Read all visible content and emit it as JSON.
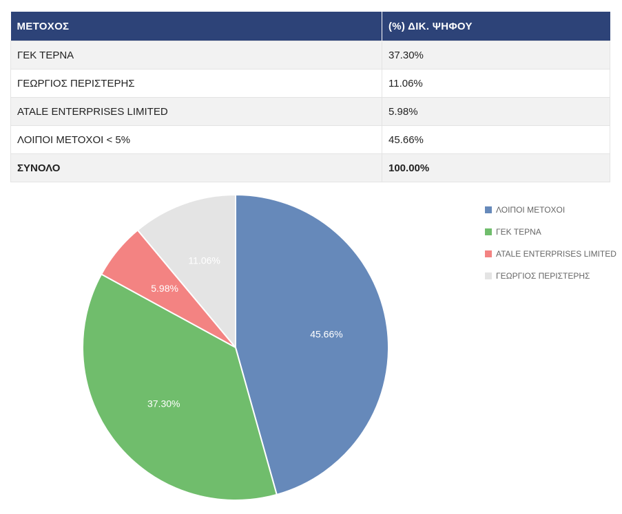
{
  "table": {
    "headers": [
      "ΜΕΤΟΧΟΣ",
      "(%) ΔΙΚ. ΨΗΦΟΥ"
    ],
    "rows": [
      {
        "holder": "ΓΕΚ ΤΕΡΝΑ",
        "percent": "37.30%"
      },
      {
        "holder": "ΓΕΩΡΓΙΟΣ ΠΕΡΙΣΤΕΡΗΣ",
        "percent": "11.06%"
      },
      {
        "holder": "ATALE ENTERPRISES LIMITED",
        "percent": "5.98%"
      },
      {
        "holder": "ΛΟΙΠΟΙ ΜΕΤΟΧΟΙ < 5%",
        "percent": "45.66%"
      }
    ],
    "total": {
      "holder": "ΣΥΝΟΛΟ",
      "percent": "100.00%"
    }
  },
  "chart_data": {
    "type": "pie",
    "title": "",
    "legend_position": "top-right",
    "slices": [
      {
        "label": "ΛΟΙΠΟΙ ΜΕΤΟΧΟΙ",
        "value": 45.66,
        "display": "45.66%",
        "color": "#6689ba"
      },
      {
        "label": "ΓΕΚ ΤΕΡΝΑ",
        "value": 37.3,
        "display": "37.30%",
        "color": "#70bd6c"
      },
      {
        "label": "ATALE ENTERPRISES LIMITED",
        "value": 5.98,
        "display": "5.98%",
        "color": "#f38382"
      },
      {
        "label": "ΓΕΩΡΓΙΟΣ ΠΕΡΙΣΤΕΡΗΣ",
        "value": 11.06,
        "display": "11.06%",
        "color": "#e4e4e4"
      }
    ]
  },
  "colors": {
    "header_bg": "#2d4378",
    "row_alt_bg": "#f2f2f2"
  }
}
